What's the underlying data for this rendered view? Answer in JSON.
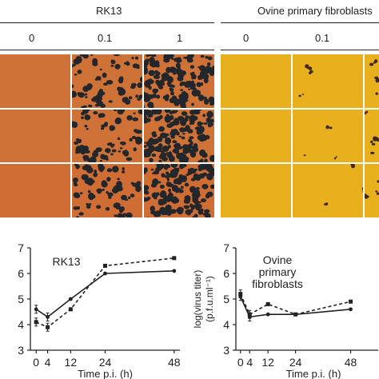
{
  "figure": {
    "top": {
      "groups": [
        {
          "name": "RK13",
          "columns": [
            "0",
            "0.1",
            "1"
          ],
          "tile_color": "#d8773a",
          "density": [
            0,
            0.35,
            0.8
          ]
        },
        {
          "name": "Ovine primary fibroblasts",
          "columns": [
            "0",
            "0.1",
            ""
          ],
          "tile_color": "#f2b81e",
          "density": [
            0,
            0.02,
            0.03
          ]
        }
      ]
    }
  },
  "chart_data": [
    {
      "type": "line",
      "title": "RK13",
      "xlabel": "Time  p.i.  (h)",
      "ylabel": "",
      "x": [
        0,
        4,
        12,
        24,
        48
      ],
      "xticks": [
        "0",
        "4",
        "12",
        "24",
        "48"
      ],
      "yticks": [
        "3",
        "4",
        "5",
        "6",
        "7"
      ],
      "ylim": [
        3,
        7
      ],
      "xlim": [
        -2,
        50
      ],
      "series": [
        {
          "style": "solid",
          "values": [
            4.6,
            4.3,
            5.0,
            6.0,
            6.1
          ]
        },
        {
          "style": "dashed",
          "values": [
            4.1,
            3.9,
            4.6,
            6.3,
            6.6
          ]
        }
      ]
    },
    {
      "type": "line",
      "title": "Ovine\nprimary\nfibroblasts",
      "xlabel": "Time  p.i.  (h)",
      "ylabel": "log(virus titer)\n(p.f.u.ml⁻¹)",
      "x": [
        0,
        4,
        12,
        24,
        48
      ],
      "xticks": [
        "0",
        "4",
        "12",
        "24",
        "48"
      ],
      "yticks": [
        "3",
        "4",
        "5",
        "6",
        "7"
      ],
      "ylim": [
        3,
        7
      ],
      "xlim": [
        -2,
        60
      ],
      "series": [
        {
          "style": "solid",
          "values": [
            5.1,
            4.3,
            4.4,
            4.4,
            4.6
          ]
        },
        {
          "style": "dashed",
          "values": [
            5.2,
            4.4,
            4.8,
            4.4,
            4.9
          ]
        }
      ]
    }
  ]
}
